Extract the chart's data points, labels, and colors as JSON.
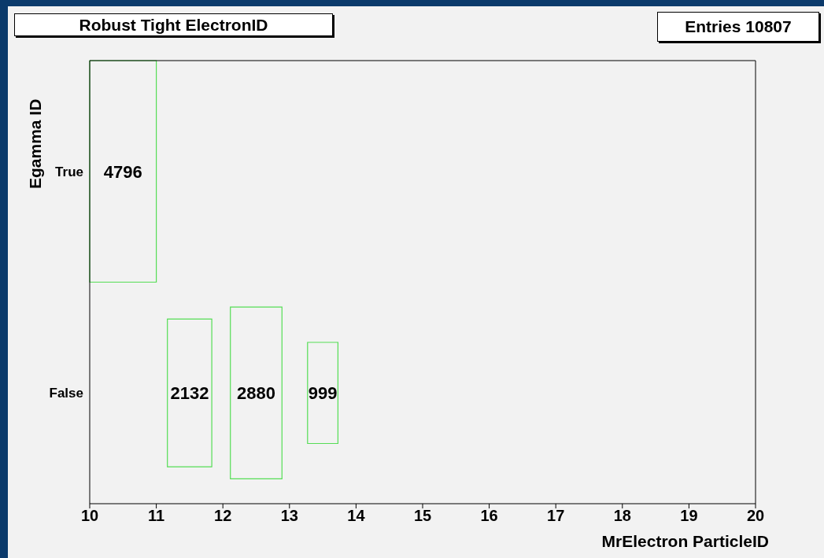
{
  "chart_data": {
    "type": "heatmap",
    "title": "Robust Tight ElectronID",
    "xlabel": "MrElectron ParticleID",
    "ylabel": "Egamma ID",
    "annotations": [
      "Entries 10807"
    ],
    "x": [
      10.5,
      11.5,
      12.5,
      13.5
    ],
    "y_categories": [
      "True",
      "False"
    ],
    "cells": [
      [
        4796,
        null,
        null,
        null
      ],
      [
        null,
        2132,
        2880,
        999
      ]
    ],
    "color": "#55dd55",
    "data_labels": true,
    "xlim": [
      10,
      20
    ],
    "xticks": [
      10,
      11,
      12,
      13,
      14,
      15,
      16,
      17,
      18,
      19,
      20
    ]
  }
}
